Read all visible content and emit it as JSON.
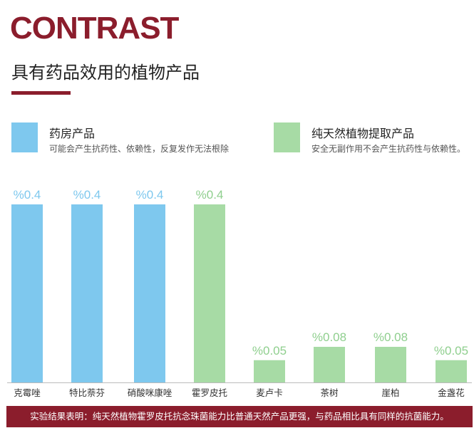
{
  "header": {
    "title": "CONTRAST",
    "subtitle": "具有药品效用的植物产品"
  },
  "legend": {
    "pharmacy": {
      "label": "药房产品",
      "description": "可能会产生抗药性、依赖性，反复发作无法根除",
      "color": "#7ec8ee"
    },
    "natural": {
      "label": "纯天然植物提取产品",
      "description": "安全无副作用不会产生抗药性与依赖性。",
      "color": "#a7dba5"
    }
  },
  "colors": {
    "title": "#8b1d2c",
    "pharmacy_label": "#7ec8ee",
    "natural_label": "#8fcf8e",
    "footer_bg": "#8b1d2c",
    "baseline": "#bbbbbb"
  },
  "chart_data": {
    "type": "bar",
    "categories": [
      "克霉唑",
      "特比萘芬",
      "硝酸咪康唑",
      "霍罗皮托",
      "麦卢卡",
      "茶树",
      "崖柏",
      "金盏花"
    ],
    "values": [
      0.4,
      0.4,
      0.4,
      0.4,
      0.05,
      0.08,
      0.08,
      0.05
    ],
    "value_labels": [
      "%0.4",
      "%0.4",
      "%0.4",
      "%0.4",
      "%0.05",
      "%0.08",
      "%0.08",
      "%0.05"
    ],
    "groups": [
      "pharmacy",
      "pharmacy",
      "pharmacy",
      "natural",
      "natural",
      "natural",
      "natural",
      "natural"
    ],
    "ylim": [
      0,
      0.4
    ],
    "grid": false
  },
  "footer": {
    "text": "实验结果表明：纯天然植物霍罗皮托抗念珠菌能力比普通天然产品更强，与药品相比具有同样的抗菌能力。"
  }
}
